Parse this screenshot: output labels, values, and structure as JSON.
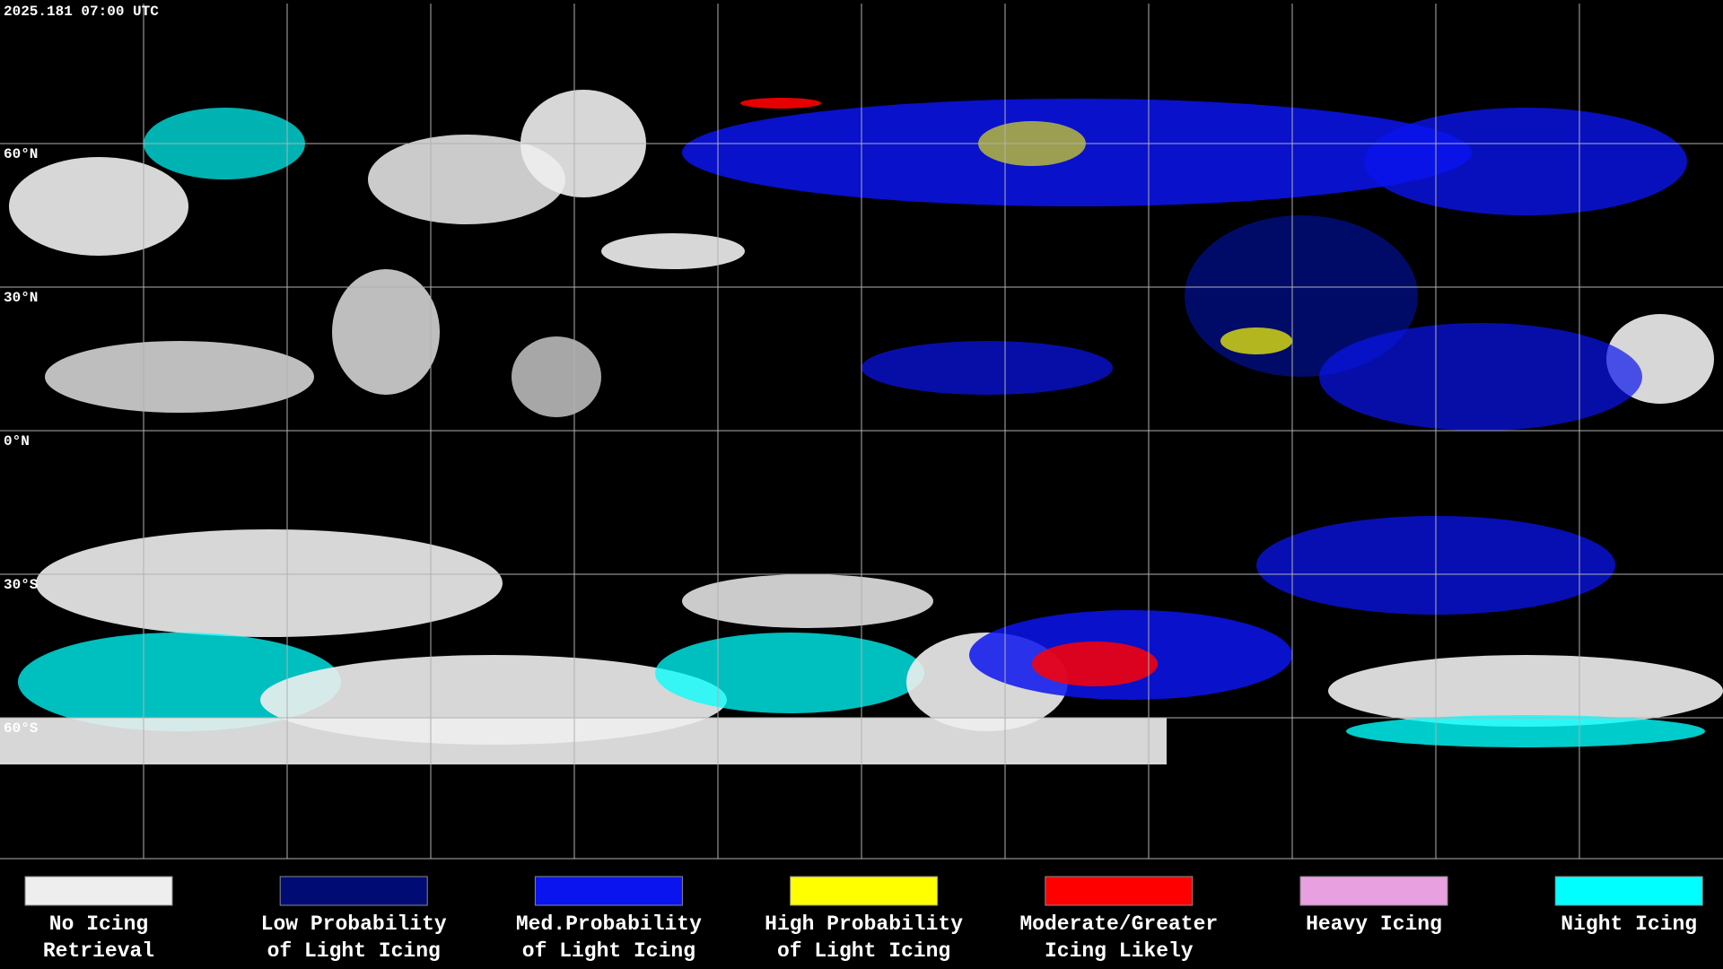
{
  "header": {
    "timestamp": "2025.181 07:00 UTC"
  },
  "map": {
    "latitude_labels": [
      "60°N",
      "30°N",
      "0°N",
      "30°S",
      "60°S"
    ]
  },
  "legend": {
    "items": [
      {
        "color": "#eeeeee",
        "lines": [
          "No Icing",
          "Retrieval"
        ]
      },
      {
        "color": "#000c73",
        "lines": [
          "Low Probability",
          "of Light Icing"
        ]
      },
      {
        "color": "#0a14ee",
        "lines": [
          "Med.Probability",
          "of Light Icing"
        ]
      },
      {
        "color": "#ffff00",
        "lines": [
          "High Probability",
          "of Light Icing"
        ]
      },
      {
        "color": "#ff0000",
        "lines": [
          "Moderate/Greater",
          "Icing Likely"
        ]
      },
      {
        "color": "#e8a0e0",
        "lines": [
          "Heavy Icing"
        ]
      },
      {
        "color": "#00ffff",
        "lines": [
          "Night Icing"
        ]
      }
    ]
  }
}
